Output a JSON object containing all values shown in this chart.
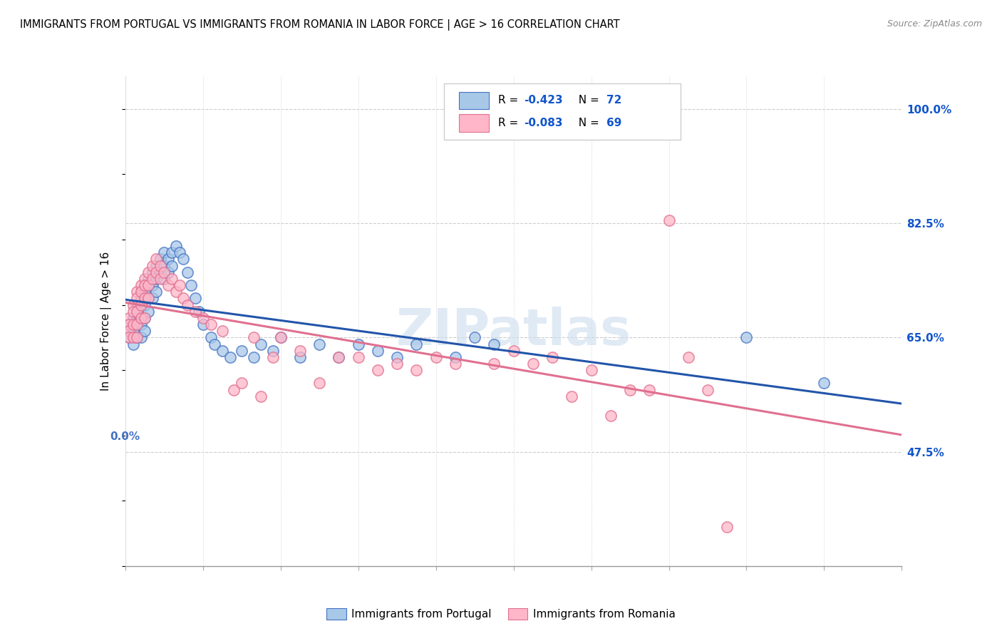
{
  "title": "IMMIGRANTS FROM PORTUGAL VS IMMIGRANTS FROM ROMANIA IN LABOR FORCE | AGE > 16 CORRELATION CHART",
  "source": "Source: ZipAtlas.com",
  "ylabel": "In Labor Force | Age > 16",
  "ytick_labels": [
    "100.0%",
    "82.5%",
    "65.0%",
    "47.5%"
  ],
  "ytick_vals": [
    1.0,
    0.825,
    0.65,
    0.475
  ],
  "xlim": [
    0.0,
    0.2
  ],
  "ylim": [
    0.3,
    1.05
  ],
  "legend_1": "R = -0.423   N = 72",
  "legend_2": "R = -0.083   N = 69",
  "portugal_color": "#a8c8e8",
  "portugal_edge": "#4472c4",
  "romania_color": "#ffb6c8",
  "romania_edge": "#e07090",
  "trend_portugal_color": "#2255aa",
  "trend_romania_color": "#e07090",
  "watermark": "ZIPatlas",
  "watermark_color": "#ccddee",
  "legend_R_color": "#1155cc",
  "legend_N_color": "#1155cc",
  "portugal_x": [
    0.001,
    0.001,
    0.001,
    0.002,
    0.002,
    0.002,
    0.002,
    0.003,
    0.003,
    0.003,
    0.003,
    0.003,
    0.004,
    0.004,
    0.004,
    0.004,
    0.004,
    0.004,
    0.005,
    0.005,
    0.005,
    0.005,
    0.005,
    0.005,
    0.006,
    0.006,
    0.006,
    0.006,
    0.007,
    0.007,
    0.007,
    0.008,
    0.008,
    0.008,
    0.009,
    0.009,
    0.01,
    0.01,
    0.01,
    0.011,
    0.011,
    0.012,
    0.012,
    0.013,
    0.014,
    0.015,
    0.016,
    0.017,
    0.018,
    0.019,
    0.02,
    0.022,
    0.023,
    0.025,
    0.027,
    0.03,
    0.033,
    0.035,
    0.038,
    0.04,
    0.045,
    0.05,
    0.055,
    0.06,
    0.065,
    0.07,
    0.075,
    0.085,
    0.09,
    0.095,
    0.16,
    0.18
  ],
  "portugal_y": [
    0.67,
    0.66,
    0.65,
    0.68,
    0.67,
    0.66,
    0.64,
    0.7,
    0.69,
    0.68,
    0.67,
    0.65,
    0.72,
    0.71,
    0.7,
    0.68,
    0.67,
    0.65,
    0.73,
    0.72,
    0.71,
    0.7,
    0.68,
    0.66,
    0.74,
    0.73,
    0.71,
    0.69,
    0.75,
    0.73,
    0.71,
    0.76,
    0.74,
    0.72,
    0.77,
    0.75,
    0.78,
    0.76,
    0.74,
    0.77,
    0.75,
    0.78,
    0.76,
    0.79,
    0.78,
    0.77,
    0.75,
    0.73,
    0.71,
    0.69,
    0.67,
    0.65,
    0.64,
    0.63,
    0.62,
    0.63,
    0.62,
    0.64,
    0.63,
    0.65,
    0.62,
    0.64,
    0.62,
    0.64,
    0.63,
    0.62,
    0.64,
    0.62,
    0.65,
    0.64,
    0.65,
    0.58
  ],
  "romania_x": [
    0.001,
    0.001,
    0.001,
    0.001,
    0.002,
    0.002,
    0.002,
    0.002,
    0.003,
    0.003,
    0.003,
    0.003,
    0.003,
    0.004,
    0.004,
    0.004,
    0.004,
    0.005,
    0.005,
    0.005,
    0.005,
    0.006,
    0.006,
    0.006,
    0.007,
    0.007,
    0.008,
    0.008,
    0.009,
    0.009,
    0.01,
    0.011,
    0.012,
    0.013,
    0.014,
    0.015,
    0.016,
    0.018,
    0.02,
    0.022,
    0.025,
    0.028,
    0.03,
    0.033,
    0.035,
    0.038,
    0.04,
    0.045,
    0.05,
    0.055,
    0.06,
    0.065,
    0.07,
    0.075,
    0.08,
    0.085,
    0.095,
    0.1,
    0.105,
    0.11,
    0.115,
    0.12,
    0.125,
    0.13,
    0.135,
    0.14,
    0.145,
    0.15,
    0.155
  ],
  "romania_y": [
    0.68,
    0.67,
    0.66,
    0.65,
    0.7,
    0.69,
    0.67,
    0.65,
    0.72,
    0.71,
    0.69,
    0.67,
    0.65,
    0.73,
    0.72,
    0.7,
    0.68,
    0.74,
    0.73,
    0.71,
    0.68,
    0.75,
    0.73,
    0.71,
    0.76,
    0.74,
    0.77,
    0.75,
    0.76,
    0.74,
    0.75,
    0.73,
    0.74,
    0.72,
    0.73,
    0.71,
    0.7,
    0.69,
    0.68,
    0.67,
    0.66,
    0.57,
    0.58,
    0.65,
    0.56,
    0.62,
    0.65,
    0.63,
    0.58,
    0.62,
    0.62,
    0.6,
    0.61,
    0.6,
    0.62,
    0.61,
    0.61,
    0.63,
    0.61,
    0.62,
    0.56,
    0.6,
    0.53,
    0.57,
    0.57,
    0.83,
    0.62,
    0.57,
    0.36
  ]
}
